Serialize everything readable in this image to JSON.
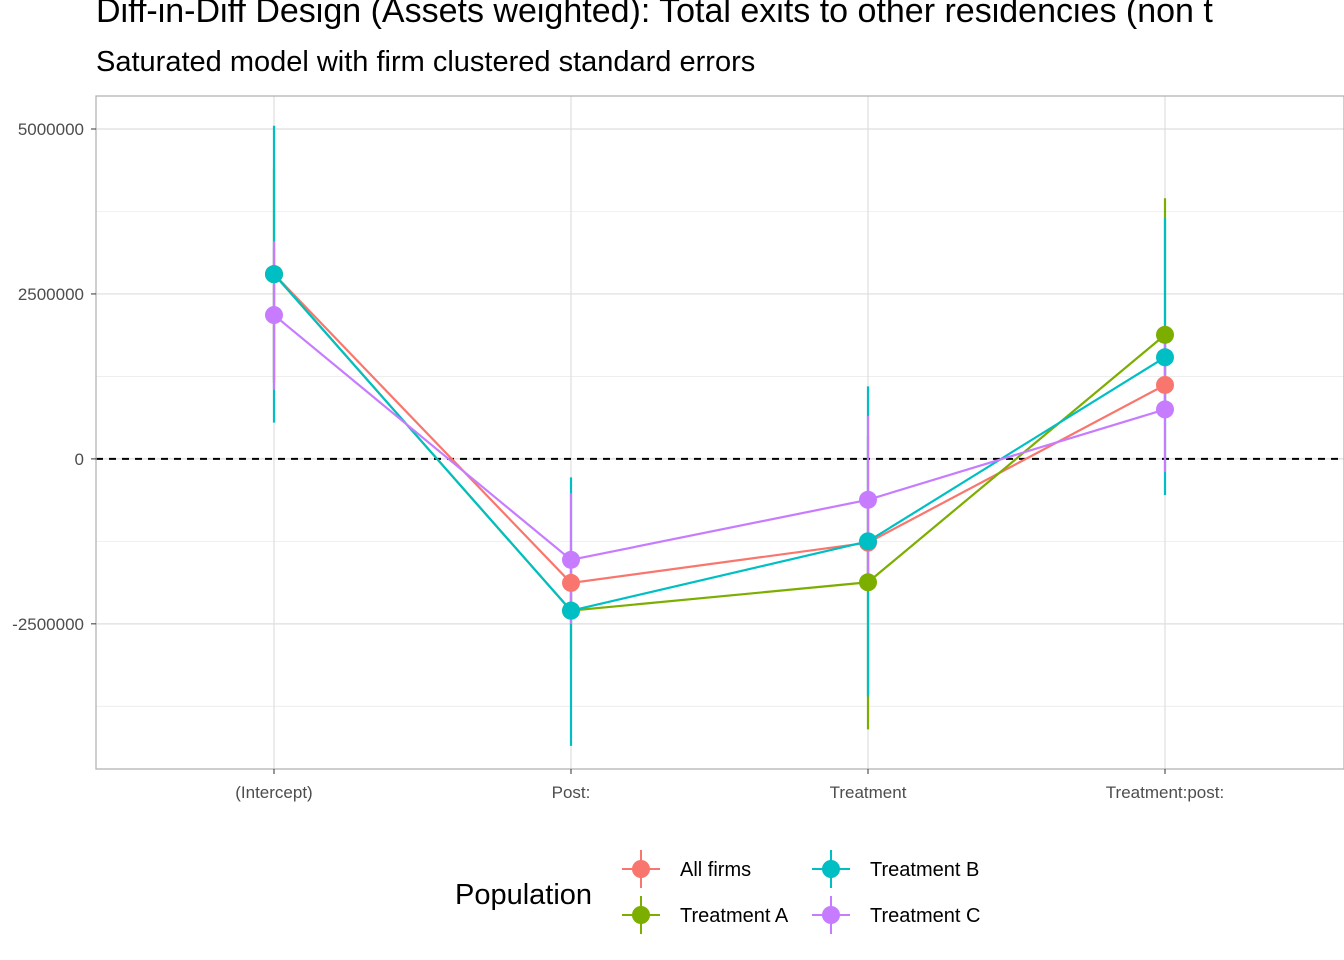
{
  "chart_data": {
    "type": "line",
    "title": "Diff-in-Diff Design (Assets weighted): Total exits to other residencies (non t",
    "subtitle": "Saturated model with firm clustered standard errors",
    "xlabel": "",
    "ylabel": "",
    "categories": [
      "(Intercept)",
      "Post:",
      "Treatment",
      "Treatment:post:"
    ],
    "ylim": [
      -4700000,
      5500000
    ],
    "yticks": [
      5000000,
      2500000,
      0,
      -2500000
    ],
    "ytick_labels": [
      "5000000",
      "2500000",
      "0",
      "-2500000"
    ],
    "reference_line": 0,
    "grid": true,
    "legend": {
      "title": "Population",
      "placement": "bottom"
    },
    "series": [
      {
        "name": "All firms",
        "color": "#F8766D",
        "values": [
          2800000,
          -1880000,
          -1270000,
          1120000
        ],
        "lower": [
          1200000,
          -2300000,
          -2000000,
          700000
        ],
        "upper": [
          3200000,
          -1350000,
          -600000,
          1750000
        ]
      },
      {
        "name": "Treatment A",
        "color": "#7CAE00",
        "values": [
          2800000,
          -2300000,
          -1870000,
          1880000
        ],
        "lower": [
          1150000,
          -3050000,
          -4100000,
          700000
        ],
        "upper": [
          4400000,
          -1700000,
          350000,
          3950000
        ]
      },
      {
        "name": "Treatment B",
        "color": "#00BFC4",
        "values": [
          2800000,
          -2300000,
          -1250000,
          1540000
        ],
        "lower": [
          550000,
          -4350000,
          -3600000,
          -550000
        ],
        "upper": [
          5050000,
          -280000,
          1100000,
          3650000
        ]
      },
      {
        "name": "Treatment C",
        "color": "#C77CFF",
        "values": [
          2180000,
          -1530000,
          -620000,
          750000
        ],
        "lower": [
          1050000,
          -2500000,
          -1900000,
          -200000
        ],
        "upper": [
          3300000,
          -520000,
          650000,
          1850000
        ]
      }
    ]
  }
}
